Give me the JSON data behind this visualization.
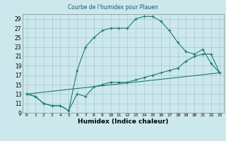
{
  "title": "Courbe de l'humidex pour Plauen",
  "xlabel": "Humidex (Indice chaleur)",
  "background_color": "#cce8ed",
  "grid_color": "#aacdd4",
  "line_color": "#1a7a6e",
  "xlim": [
    -0.5,
    23.5
  ],
  "ylim": [
    9,
    30
  ],
  "xticks": [
    0,
    1,
    2,
    3,
    4,
    5,
    6,
    7,
    8,
    9,
    10,
    11,
    12,
    13,
    14,
    15,
    16,
    17,
    18,
    19,
    20,
    21,
    22,
    23
  ],
  "xticklabels": [
    "0",
    "1",
    "2",
    "3",
    "4",
    "5",
    "6",
    "7",
    "8",
    "9",
    "10",
    "11",
    "12",
    "13",
    "14",
    "15",
    "16",
    "17",
    "18",
    "19",
    "20",
    "21",
    "22",
    "23"
  ],
  "yticks": [
    9,
    11,
    13,
    15,
    17,
    19,
    21,
    23,
    25,
    27,
    29
  ],
  "line1_x": [
    0,
    1,
    2,
    3,
    4,
    5,
    6,
    7,
    8,
    9,
    10,
    11,
    12,
    13,
    14,
    15,
    16,
    17,
    18,
    19,
    20,
    21,
    22,
    23
  ],
  "line1_y": [
    13,
    12.5,
    11,
    10.5,
    10.5,
    9.5,
    13,
    12.5,
    14.5,
    15,
    15.5,
    15.5,
    15.5,
    16,
    16.5,
    17,
    17.5,
    18,
    18.5,
    20,
    21,
    21.5,
    21.5,
    17.5
  ],
  "line2_x": [
    0,
    1,
    2,
    3,
    4,
    5,
    6,
    7,
    8,
    9,
    10,
    11,
    12,
    13,
    14,
    15,
    16,
    17,
    18,
    19,
    20,
    21,
    22,
    23
  ],
  "line2_y": [
    13,
    12.5,
    11,
    10.5,
    10.5,
    9.5,
    18,
    23,
    25,
    26.5,
    27,
    27,
    27,
    29,
    29.5,
    29.5,
    28.5,
    26.5,
    24,
    22,
    21.5,
    22.5,
    19.5,
    17.5
  ],
  "line3_x": [
    0,
    23
  ],
  "line3_y": [
    13,
    17.5
  ]
}
